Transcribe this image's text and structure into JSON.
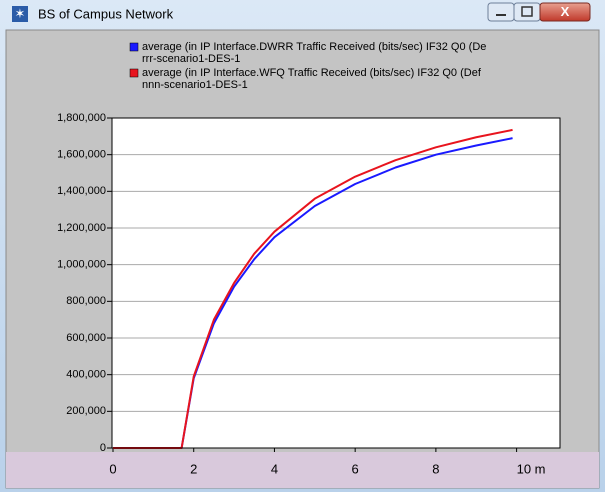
{
  "window": {
    "title": "BS of Campus Network"
  },
  "chart_data": {
    "type": "line",
    "x": [
      0,
      1.7,
      2,
      2.5,
      3,
      3.5,
      4,
      5,
      6,
      7,
      8,
      9,
      9.9
    ],
    "series": [
      {
        "name": "average (in IP Interface.DWRR Traffic Received (bits/sec) IF32 Q0 (De",
        "scenario": "rrr-scenario1-DES-1",
        "color": "#1a1aff",
        "values": [
          0,
          0,
          380000,
          680000,
          880000,
          1030000,
          1150000,
          1320000,
          1440000,
          1530000,
          1600000,
          1650000,
          1690000
        ]
      },
      {
        "name": "average (in IP Interface.WFQ Traffic Received (bits/sec) IF32 Q0 (Def",
        "scenario": "nnn-scenario1-DES-1",
        "color": "#e8141e",
        "values": [
          0,
          0,
          390000,
          700000,
          900000,
          1060000,
          1180000,
          1360000,
          1480000,
          1570000,
          1640000,
          1695000,
          1735000
        ]
      }
    ],
    "xlim": [
      0,
      11.1
    ],
    "xticks": [
      0,
      2,
      4,
      6,
      8,
      {
        "value": 10,
        "label": "10 m"
      }
    ],
    "ylim": [
      0,
      1800000
    ],
    "yticks": [
      0,
      {
        "value": 200000,
        "label": "200,000"
      },
      {
        "value": 400000,
        "label": "400,000"
      },
      {
        "value": 600000,
        "label": "600,000"
      },
      {
        "value": 800000,
        "label": "800,000"
      },
      {
        "value": 1000000,
        "label": "1,000,000"
      },
      {
        "value": 1200000,
        "label": "1,200,000"
      },
      {
        "value": 1400000,
        "label": "1,400,000"
      },
      {
        "value": 1600000,
        "label": "1,600,000"
      },
      {
        "value": 1800000,
        "label": "1,800,000"
      }
    ],
    "grid": true
  }
}
